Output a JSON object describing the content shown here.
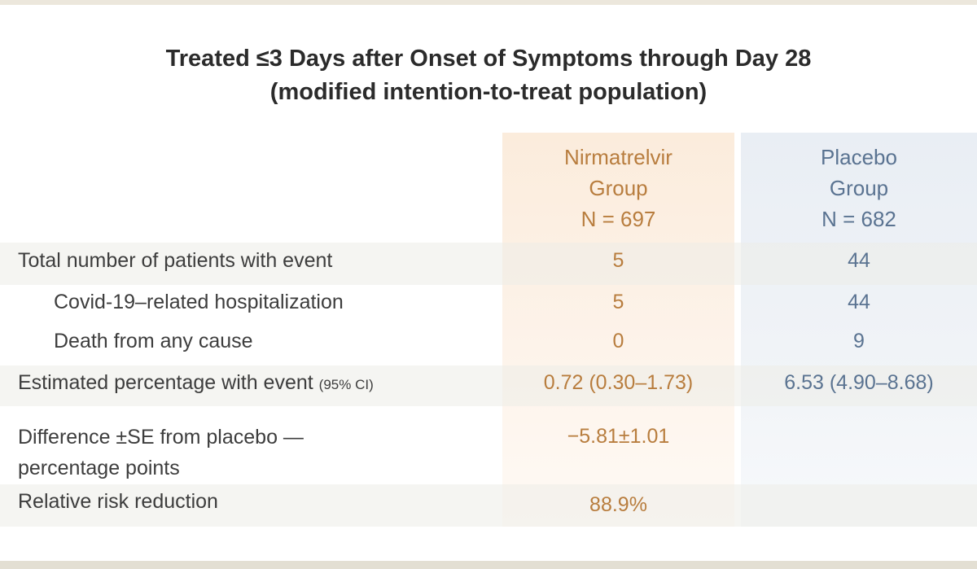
{
  "title": {
    "line1": "Treated ≤3 Days after Onset of Symptoms through Day 28",
    "line2": "(modified intention-to-treat population)"
  },
  "columns": {
    "nirmatrelvir": {
      "line1": "Nirmatrelvir",
      "line2": "Group",
      "line3": "N = 697"
    },
    "placebo": {
      "line1": "Placebo",
      "line2": "Group",
      "line3": "N = 682"
    }
  },
  "rows": [
    {
      "label": "Total number of patients with event",
      "nirmatrelvir": "5",
      "placebo": "44"
    },
    {
      "label": "Covid-19–related hospitalization",
      "nirmatrelvir": "5",
      "placebo": "44"
    },
    {
      "label": "Death from any cause",
      "nirmatrelvir": "0",
      "placebo": "9"
    },
    {
      "label": "Estimated percentage with event",
      "label_note": "(95% CI)",
      "nirmatrelvir": "0.72 (0.30–1.73)",
      "placebo": "6.53 (4.90–8.68)"
    },
    {
      "label_line1": "Difference ±SE from placebo —",
      "label_line2": "percentage points",
      "nirmatrelvir": "−5.81±1.01",
      "placebo": ""
    },
    {
      "label": "Relative risk reduction",
      "nirmatrelvir": "88.9%",
      "placebo": ""
    }
  ],
  "colors": {
    "nirmatrelvir_text": "#b87d3e",
    "placebo_text": "#5a7391",
    "nirmatrelvir_bg": "#fbecdc",
    "placebo_bg": "#e9eef4"
  }
}
